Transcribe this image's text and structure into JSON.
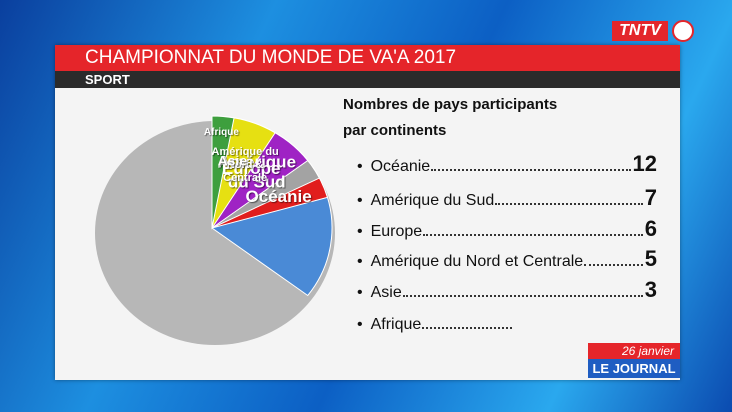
{
  "logo": "TNTV",
  "header": {
    "title": "CHAMPIONNAT DU MONDE DE VA'A 2017",
    "section": "SPORT"
  },
  "date": "26 janvier",
  "show": "LE JOURNAL",
  "chart_data": {
    "type": "pie",
    "title": "Nombres de pays participants par continents",
    "categories": [
      "Océanie",
      "Amérique du Sud",
      "Europe",
      "Amérique du Nord & Centrale",
      "Asie",
      "Afrique"
    ],
    "legend_labels": [
      "Océanie",
      "Amérique du Sud",
      "Europe",
      "Amérique du Nord et Centrale",
      "Asie",
      "Afrique"
    ],
    "values": [
      12,
      7,
      6,
      5,
      3,
      1
    ],
    "value_labels": [
      "12",
      "7",
      "6",
      "5",
      "3",
      null
    ],
    "colors": [
      "#4a8ad6",
      "#e11d1d",
      "#a3a3a3",
      "#9f23c4",
      "#e6e012",
      "#3e9f3e"
    ]
  }
}
